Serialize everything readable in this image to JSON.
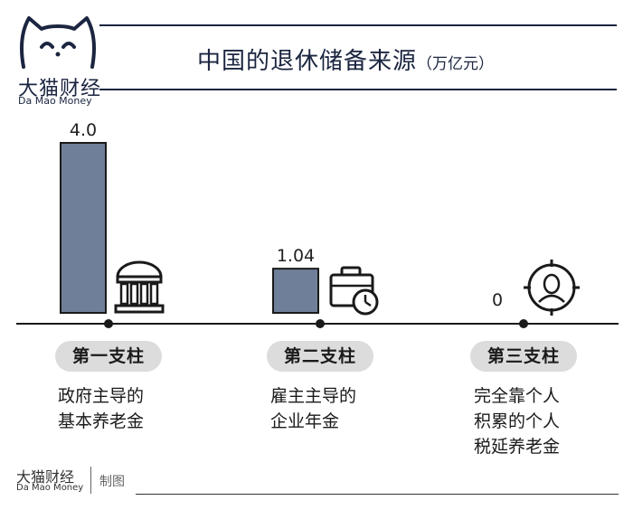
{
  "brand": {
    "name": "大猫财经",
    "english": "Da Mao Money"
  },
  "header": {
    "title": "中国的退休储备来源",
    "unit": "（万亿元）"
  },
  "chart_data": {
    "type": "bar",
    "title": "中国的退休储备来源",
    "unit": "万亿元",
    "categories": [
      "第一支柱",
      "第二支柱",
      "第三支柱"
    ],
    "values": [
      4.0,
      1.04,
      0
    ],
    "value_labels": [
      "4.0",
      "1.04",
      "0"
    ],
    "descriptions": [
      [
        "政府主导的",
        "基本养老金"
      ],
      [
        "雇主主导的",
        "企业年金"
      ],
      [
        "完全靠个人",
        "积累的个人",
        "税延养老金"
      ]
    ],
    "icons": [
      "government-building-icon",
      "briefcase-clock-icon",
      "person-target-icon"
    ],
    "bar_color": "#6f7f99",
    "ylim": [
      0,
      4.0
    ]
  },
  "footer": {
    "name": "大猫财经",
    "english": "Da Mao Money",
    "tag": "制图"
  },
  "colors": {
    "navy": "#1b2540",
    "bar": "#6f7f99",
    "pill": "#dcdcdc"
  }
}
